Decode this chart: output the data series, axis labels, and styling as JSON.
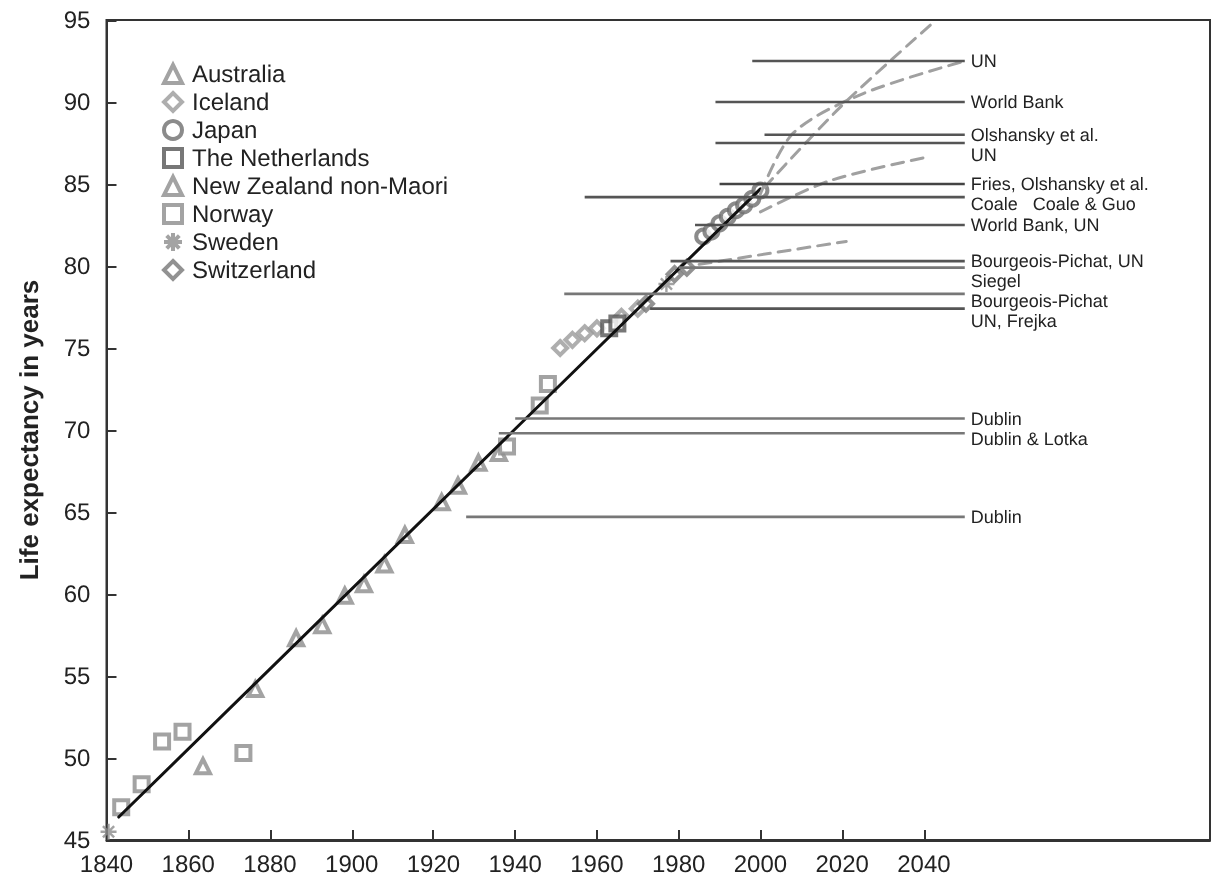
{
  "chart_data": {
    "type": "scatter",
    "ylabel": "Life expectancy in years",
    "xlim": [
      1840,
      2110
    ],
    "xticks": [
      1840,
      1860,
      1880,
      1900,
      1920,
      1940,
      1960,
      1980,
      2000,
      2020,
      2040
    ],
    "ylim": [
      45,
      95
    ],
    "yticks": [
      45,
      50,
      55,
      60,
      65,
      70,
      75,
      80,
      85,
      90,
      95
    ],
    "grid": false,
    "legend": "top left",
    "series": [
      {
        "name": "Australia",
        "marker": "triangle",
        "color": "#8c8c8c",
        "x": [
          1863.6
        ],
        "values": [
          49.5
        ]
      },
      {
        "name": "Iceland",
        "marker": "diamond",
        "color": "#9a9a9a",
        "x": [
          1951,
          1954,
          1957,
          1960,
          1966,
          1970
        ],
        "values": [
          75.0,
          75.5,
          75.9,
          76.2,
          76.9,
          77.4
        ]
      },
      {
        "name": "Japan",
        "marker": "circle",
        "color": "#6e6e6e",
        "x": [
          1986,
          1988,
          1990,
          1992,
          1994,
          1996,
          1998,
          2000
        ],
        "values": [
          81.8,
          82.1,
          82.6,
          83.0,
          83.4,
          83.7,
          84.1,
          84.6
        ]
      },
      {
        "name": "The Netherlands",
        "marker": "square",
        "color": "#555555",
        "x": [
          1963,
          1965
        ],
        "values": [
          76.2,
          76.5
        ]
      },
      {
        "name": "New Zealand non-Maori",
        "marker": "triangle",
        "color": "#8c8c8c",
        "x": [
          1876.4,
          1886.4,
          1892.8,
          1898.3,
          1903,
          1908,
          1913,
          1922,
          1926,
          1931,
          1936
        ],
        "values": [
          54.2,
          57.3,
          58.1,
          59.9,
          60.6,
          61.8,
          63.6,
          65.6,
          66.6,
          68.0,
          68.6
        ]
      },
      {
        "name": "Norway",
        "marker": "square",
        "color": "#8c8c8c",
        "x": [
          1843.6,
          1848.6,
          1853.6,
          1858.6,
          1873.5,
          1938,
          1946,
          1948
        ],
        "values": [
          47.0,
          48.4,
          51.0,
          51.6,
          50.3,
          69.0,
          71.5,
          72.8
        ]
      },
      {
        "name": "Sweden",
        "marker": "cross",
        "color": "#8c8c8c",
        "x": [
          1840.5,
          1977
        ],
        "values": [
          45.5,
          78.9
        ]
      },
      {
        "name": "Switzerland",
        "marker": "diamond",
        "color": "#777777",
        "x": [
          1972,
          1979,
          1982
        ],
        "values": [
          77.7,
          79.5,
          79.9
        ]
      },
      {
        "type": "line",
        "marker": "none",
        "line_style": "solid",
        "color": "#111111",
        "x": [
          1843,
          2000
        ],
        "values": [
          46.4,
          84.7
        ]
      },
      {
        "type": "line",
        "marker": "none",
        "line_style": "dashed",
        "color": "#a0a0a0",
        "x": [
          2001,
          2020,
          2043
        ],
        "values": [
          84.8,
          89.8,
          95.0
        ]
      },
      {
        "type": "line",
        "marker": "none",
        "line_style": "dashed",
        "color": "#a0a0a0",
        "x": [
          2000,
          2008,
          2025,
          2050
        ],
        "values": [
          84.4,
          88.1,
          90.5,
          92.5
        ]
      },
      {
        "type": "line",
        "marker": "none",
        "line_style": "dashed",
        "color": "#a0a0a0",
        "x": [
          2000,
          2017,
          2040
        ],
        "values": [
          83.3,
          85.2,
          86.6
        ]
      },
      {
        "type": "line",
        "marker": "none",
        "line_style": "dashed",
        "color": "#a0a0a0",
        "x": [
          1985,
          2021
        ],
        "values": [
          80.1,
          81.5
        ]
      },
      {
        "name": "UN",
        "type": "line",
        "color": "#555555",
        "x": [
          1998,
          2050
        ],
        "values": [
          92.5,
          92.5
        ]
      },
      {
        "name": "World Bank",
        "type": "line",
        "color": "#555555",
        "x": [
          1989,
          2050
        ],
        "values": [
          90.0,
          90.0
        ]
      },
      {
        "name": "Olshansky et al.",
        "type": "line",
        "color": "#555555",
        "x": [
          2001,
          2050
        ],
        "values": [
          88.0,
          88.0
        ]
      },
      {
        "name": "UN",
        "type": "line",
        "color": "#555555",
        "x": [
          1989,
          2050
        ],
        "values": [
          87.5,
          87.5
        ]
      },
      {
        "name": "Fries, Olshansky et al.",
        "type": "line",
        "color": "#444444",
        "x": [
          1990,
          2050
        ],
        "values": [
          85.0,
          85.0
        ]
      },
      {
        "name": "Coale   Coale & Guo",
        "type": "line",
        "color": "#555555",
        "x": [
          1957,
          2050
        ],
        "values": [
          84.2,
          84.2
        ]
      },
      {
        "name": "World Bank, UN",
        "type": "line",
        "color": "#555555",
        "x": [
          1984,
          2050
        ],
        "values": [
          82.5,
          82.5
        ]
      },
      {
        "name": "Bourgeois-Pichat, UN",
        "type": "line",
        "color": "#555555",
        "x": [
          1978,
          2050
        ],
        "values": [
          80.3,
          80.3
        ]
      },
      {
        "name": "Siegel",
        "type": "line",
        "color": "#777777",
        "x": [
          1980,
          2050
        ],
        "values": [
          79.9,
          79.9
        ]
      },
      {
        "name": "Bourgeois-Pichat",
        "type": "line",
        "color": "#777777",
        "x": [
          1952,
          2050
        ],
        "values": [
          78.3,
          78.3
        ]
      },
      {
        "name": "UN, Frejka",
        "type": "line",
        "color": "#555555",
        "x": [
          1973,
          2050
        ],
        "values": [
          77.4,
          77.4
        ]
      },
      {
        "name": "Dublin",
        "type": "line",
        "color": "#777777",
        "x": [
          1940,
          2050
        ],
        "values": [
          70.7,
          70.7
        ]
      },
      {
        "name": "Dublin & Lotka",
        "type": "line",
        "color": "#777777",
        "x": [
          1936,
          2050
        ],
        "values": [
          69.8,
          69.8
        ]
      },
      {
        "name": "Dublin",
        "type": "line",
        "color": "#777777",
        "x": [
          1928,
          2050
        ],
        "values": [
          64.7,
          64.7
        ]
      }
    ]
  }
}
